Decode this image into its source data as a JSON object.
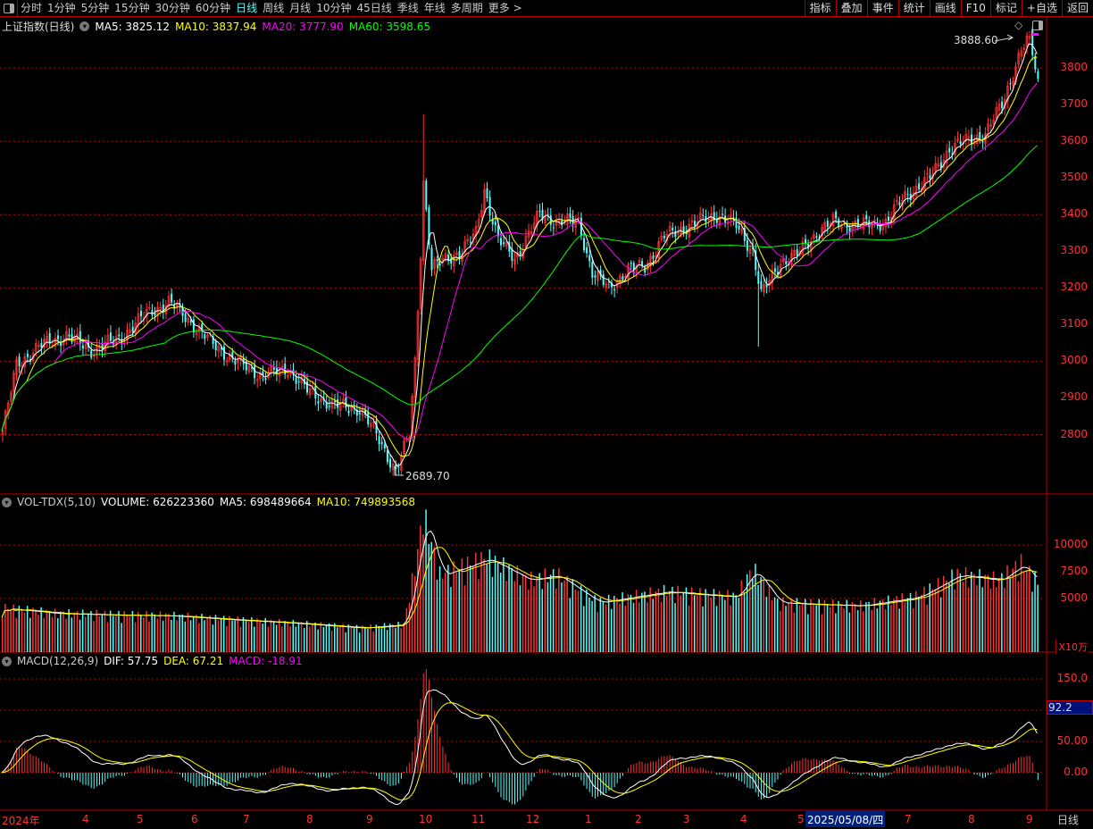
{
  "toolbar": {
    "periods": [
      "分时",
      "1分钟",
      "5分钟",
      "15分钟",
      "30分钟",
      "60分钟",
      "日线",
      "周线",
      "月线",
      "10分钟",
      "45日线",
      "季线",
      "年线",
      "多周期",
      "更多 >"
    ],
    "active_period": "日线",
    "buttons": [
      "指标",
      "叠加",
      "事件",
      "统计",
      "画线",
      "F10",
      "标记",
      "+自选",
      "返回"
    ]
  },
  "price_pane": {
    "title": "上证指数(日线)",
    "ma5": "MA5: 3825.12",
    "ma10": "MA10: 3837.94",
    "ma20": "MA20: 3777.90",
    "ma60": "MA60: 3598.65",
    "high_label": "3888.60",
    "low_label": "2689.70",
    "axis": [
      "3800",
      "3700",
      "3600",
      "3500",
      "3400",
      "3300",
      "3200",
      "3100",
      "3000",
      "2900",
      "2800"
    ]
  },
  "volume_pane": {
    "title": "VOL-TDX(5,10)",
    "volume": "VOLUME: 626223360",
    "ma5": "MA5: 698489664",
    "ma10": "MA10: 749893568",
    "axis": [
      "10000",
      "7500",
      "5000"
    ],
    "unit": "X10万"
  },
  "macd_pane": {
    "title": "MACD(12,26,9)",
    "dif": "DIF: 57.75",
    "dea": "DEA: 67.21",
    "macd": "MACD: -18.91",
    "axis": [
      "150.0",
      "50.00",
      "0.00"
    ],
    "cursor_value": "92.2"
  },
  "date_axis": {
    "labels": [
      "2024年",
      "4",
      "5",
      "6",
      "7",
      "8",
      "9",
      "10",
      "11",
      "12",
      "1",
      "2",
      "3",
      "4",
      "5",
      "7",
      "8",
      "9"
    ],
    "cursor_date": "2025/05/08/四",
    "period": "日线"
  },
  "colors": {
    "up": "#ff3232",
    "down": "#54fcfc",
    "ma5": "#ffffff",
    "ma10": "#ffff00",
    "ma20": "#ff00ff",
    "ma60": "#00ff00",
    "grid": "#c00000"
  },
  "chart_data": {
    "type": "candlestick",
    "x_unit": "trading day index",
    "closes_keypoints": [
      [
        0,
        2810
      ],
      [
        5,
        2990
      ],
      [
        13,
        3040
      ],
      [
        23,
        3070
      ],
      [
        32,
        3030
      ],
      [
        42,
        3060
      ],
      [
        52,
        3130
      ],
      [
        60,
        3160
      ],
      [
        65,
        3130
      ],
      [
        74,
        3060
      ],
      [
        84,
        3000
      ],
      [
        94,
        2960
      ],
      [
        103,
        2980
      ],
      [
        110,
        2920
      ],
      [
        119,
        2880
      ],
      [
        129,
        2870
      ],
      [
        135,
        2800
      ],
      [
        142,
        2700
      ],
      [
        147,
        2800
      ],
      [
        149,
        3000
      ],
      [
        151,
        3300
      ],
      [
        152,
        3490
      ],
      [
        155,
        3250
      ],
      [
        160,
        3280
      ],
      [
        166,
        3300
      ],
      [
        171,
        3350
      ],
      [
        174,
        3470
      ],
      [
        179,
        3330
      ],
      [
        185,
        3280
      ],
      [
        194,
        3400
      ],
      [
        200,
        3380
      ],
      [
        208,
        3380
      ],
      [
        213,
        3240
      ],
      [
        219,
        3200
      ],
      [
        226,
        3250
      ],
      [
        232,
        3260
      ],
      [
        239,
        3340
      ],
      [
        248,
        3370
      ],
      [
        258,
        3400
      ],
      [
        265,
        3370
      ],
      [
        271,
        3300
      ],
      [
        274,
        3180
      ],
      [
        281,
        3270
      ],
      [
        287,
        3290
      ],
      [
        294,
        3350
      ],
      [
        300,
        3380
      ],
      [
        310,
        3370
      ],
      [
        319,
        3380
      ],
      [
        326,
        3450
      ],
      [
        335,
        3500
      ],
      [
        342,
        3580
      ],
      [
        348,
        3600
      ],
      [
        355,
        3620
      ],
      [
        361,
        3700
      ],
      [
        368,
        3850
      ],
      [
        371,
        3880
      ],
      [
        374,
        3760
      ]
    ],
    "high": 3888.6,
    "low": 2689.7,
    "volume_keypoints_x10wan": [
      [
        0,
        4000
      ],
      [
        20,
        3500
      ],
      [
        60,
        3300
      ],
      [
        100,
        2700
      ],
      [
        130,
        2200
      ],
      [
        145,
        2500
      ],
      [
        150,
        9000
      ],
      [
        152,
        12500
      ],
      [
        158,
        7000
      ],
      [
        175,
        8500
      ],
      [
        190,
        6500
      ],
      [
        200,
        7000
      ],
      [
        215,
        4500
      ],
      [
        240,
        5500
      ],
      [
        265,
        5000
      ],
      [
        271,
        7500
      ],
      [
        280,
        4500
      ],
      [
        310,
        4200
      ],
      [
        330,
        5000
      ],
      [
        345,
        7000
      ],
      [
        360,
        6500
      ],
      [
        368,
        8000
      ],
      [
        374,
        6300
      ]
    ],
    "price_ylim": [
      2650,
      3900
    ],
    "volume_ylim": [
      0,
      12500
    ],
    "macd_ylim": [
      -60,
      170
    ]
  }
}
